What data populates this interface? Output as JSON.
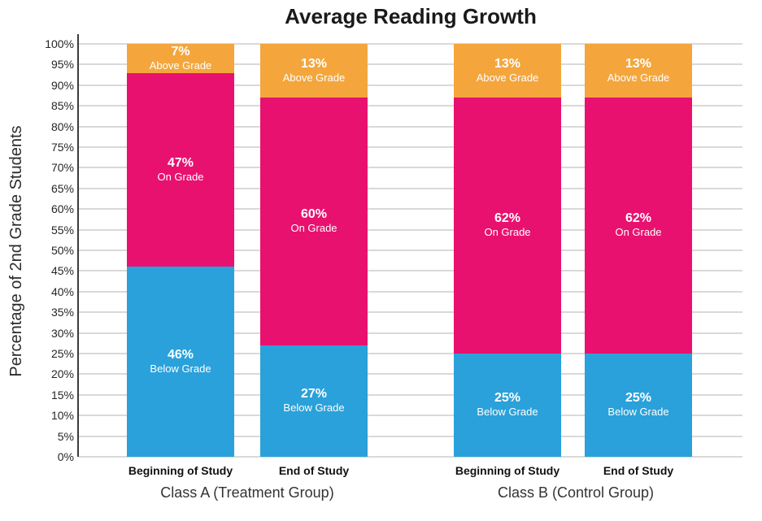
{
  "chart_data": {
    "type": "bar",
    "stacked": true,
    "title": "Average Reading Growth",
    "ylabel": "Percentage of 2nd Grade Students",
    "ylim": [
      0,
      100
    ],
    "ytick_step": 5,
    "ytick_suffix": "%",
    "grid": true,
    "legend_position": "none (series labeled inside segments)",
    "categories": [
      "Beginning of Study",
      "End of Study",
      "Beginning of Study",
      "End of Study"
    ],
    "groups": [
      {
        "label": "Class A (Treatment Group)",
        "category_indexes": [
          0,
          1
        ]
      },
      {
        "label": "Class B (Control Group)",
        "category_indexes": [
          2,
          3
        ]
      }
    ],
    "series": [
      {
        "name": "Below Grade",
        "color": "#2aa1da",
        "values": [
          46,
          27,
          25,
          25
        ]
      },
      {
        "name": "On Grade",
        "color": "#e9116f",
        "values": [
          47,
          60,
          62,
          62
        ]
      },
      {
        "name": "Above Grade",
        "color": "#f4a63c",
        "values": [
          7,
          13,
          13,
          13
        ]
      }
    ],
    "segment_value_suffix": "%",
    "style": {
      "grid_color": "#d9d9d9",
      "axis_line_color": "#3b3b3b",
      "tick_text_color": "#262626",
      "title_color": "#1a1a1a",
      "segment_text_color": "#ffffff",
      "background": "#ffffff"
    }
  }
}
